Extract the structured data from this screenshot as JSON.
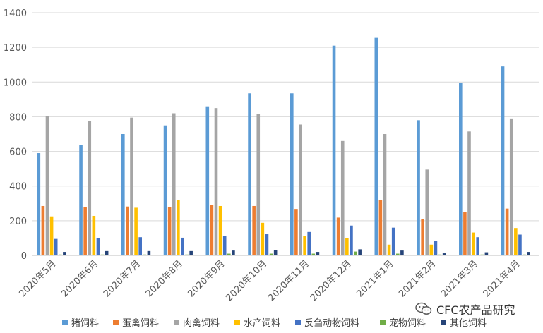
{
  "chart_data": {
    "type": "bar",
    "title": "",
    "xlabel": "",
    "ylabel": "",
    "ylim": [
      0,
      1400
    ],
    "yticks": [
      0,
      200,
      400,
      600,
      800,
      1000,
      1200,
      1400
    ],
    "grid": true,
    "legend_position": "bottom",
    "categories": [
      "2020年5月",
      "2020年6月",
      "2020年7月",
      "2020年8月",
      "2020年9月",
      "2020年10月",
      "2020年11月",
      "2020年12月",
      "2021年1月",
      "2021年2月",
      "2021年3月",
      "2021年4月"
    ],
    "series": [
      {
        "name": "猪饲料",
        "color": "#5B9BD5",
        "values": [
          590,
          635,
          700,
          750,
          860,
          935,
          935,
          1210,
          1255,
          780,
          995,
          1090
        ]
      },
      {
        "name": "蛋禽饲料",
        "color": "#ED7D31",
        "values": [
          285,
          278,
          282,
          278,
          292,
          285,
          268,
          218,
          318,
          210,
          252,
          270
        ]
      },
      {
        "name": "肉禽饲料",
        "color": "#A5A5A5",
        "values": [
          805,
          775,
          795,
          820,
          850,
          815,
          755,
          660,
          700,
          495,
          715,
          790
        ]
      },
      {
        "name": "水产饲料",
        "color": "#FFC000",
        "values": [
          225,
          228,
          275,
          318,
          285,
          188,
          112,
          100,
          62,
          62,
          132,
          158
        ]
      },
      {
        "name": "反刍动物饲料",
        "color": "#4472C4",
        "values": [
          95,
          98,
          105,
          102,
          110,
          122,
          135,
          172,
          160,
          82,
          105,
          120
        ]
      },
      {
        "name": "宠物饲料",
        "color": "#70AD47",
        "values": [
          5,
          5,
          5,
          5,
          10,
          10,
          10,
          22,
          10,
          5,
          5,
          5
        ]
      },
      {
        "name": "其他饲料",
        "color": "#264478",
        "values": [
          20,
          25,
          25,
          25,
          28,
          30,
          20,
          35,
          28,
          12,
          18,
          20
        ]
      }
    ]
  },
  "watermark": {
    "text": "CFC农产品研究",
    "icon": "wechat-icon"
  }
}
